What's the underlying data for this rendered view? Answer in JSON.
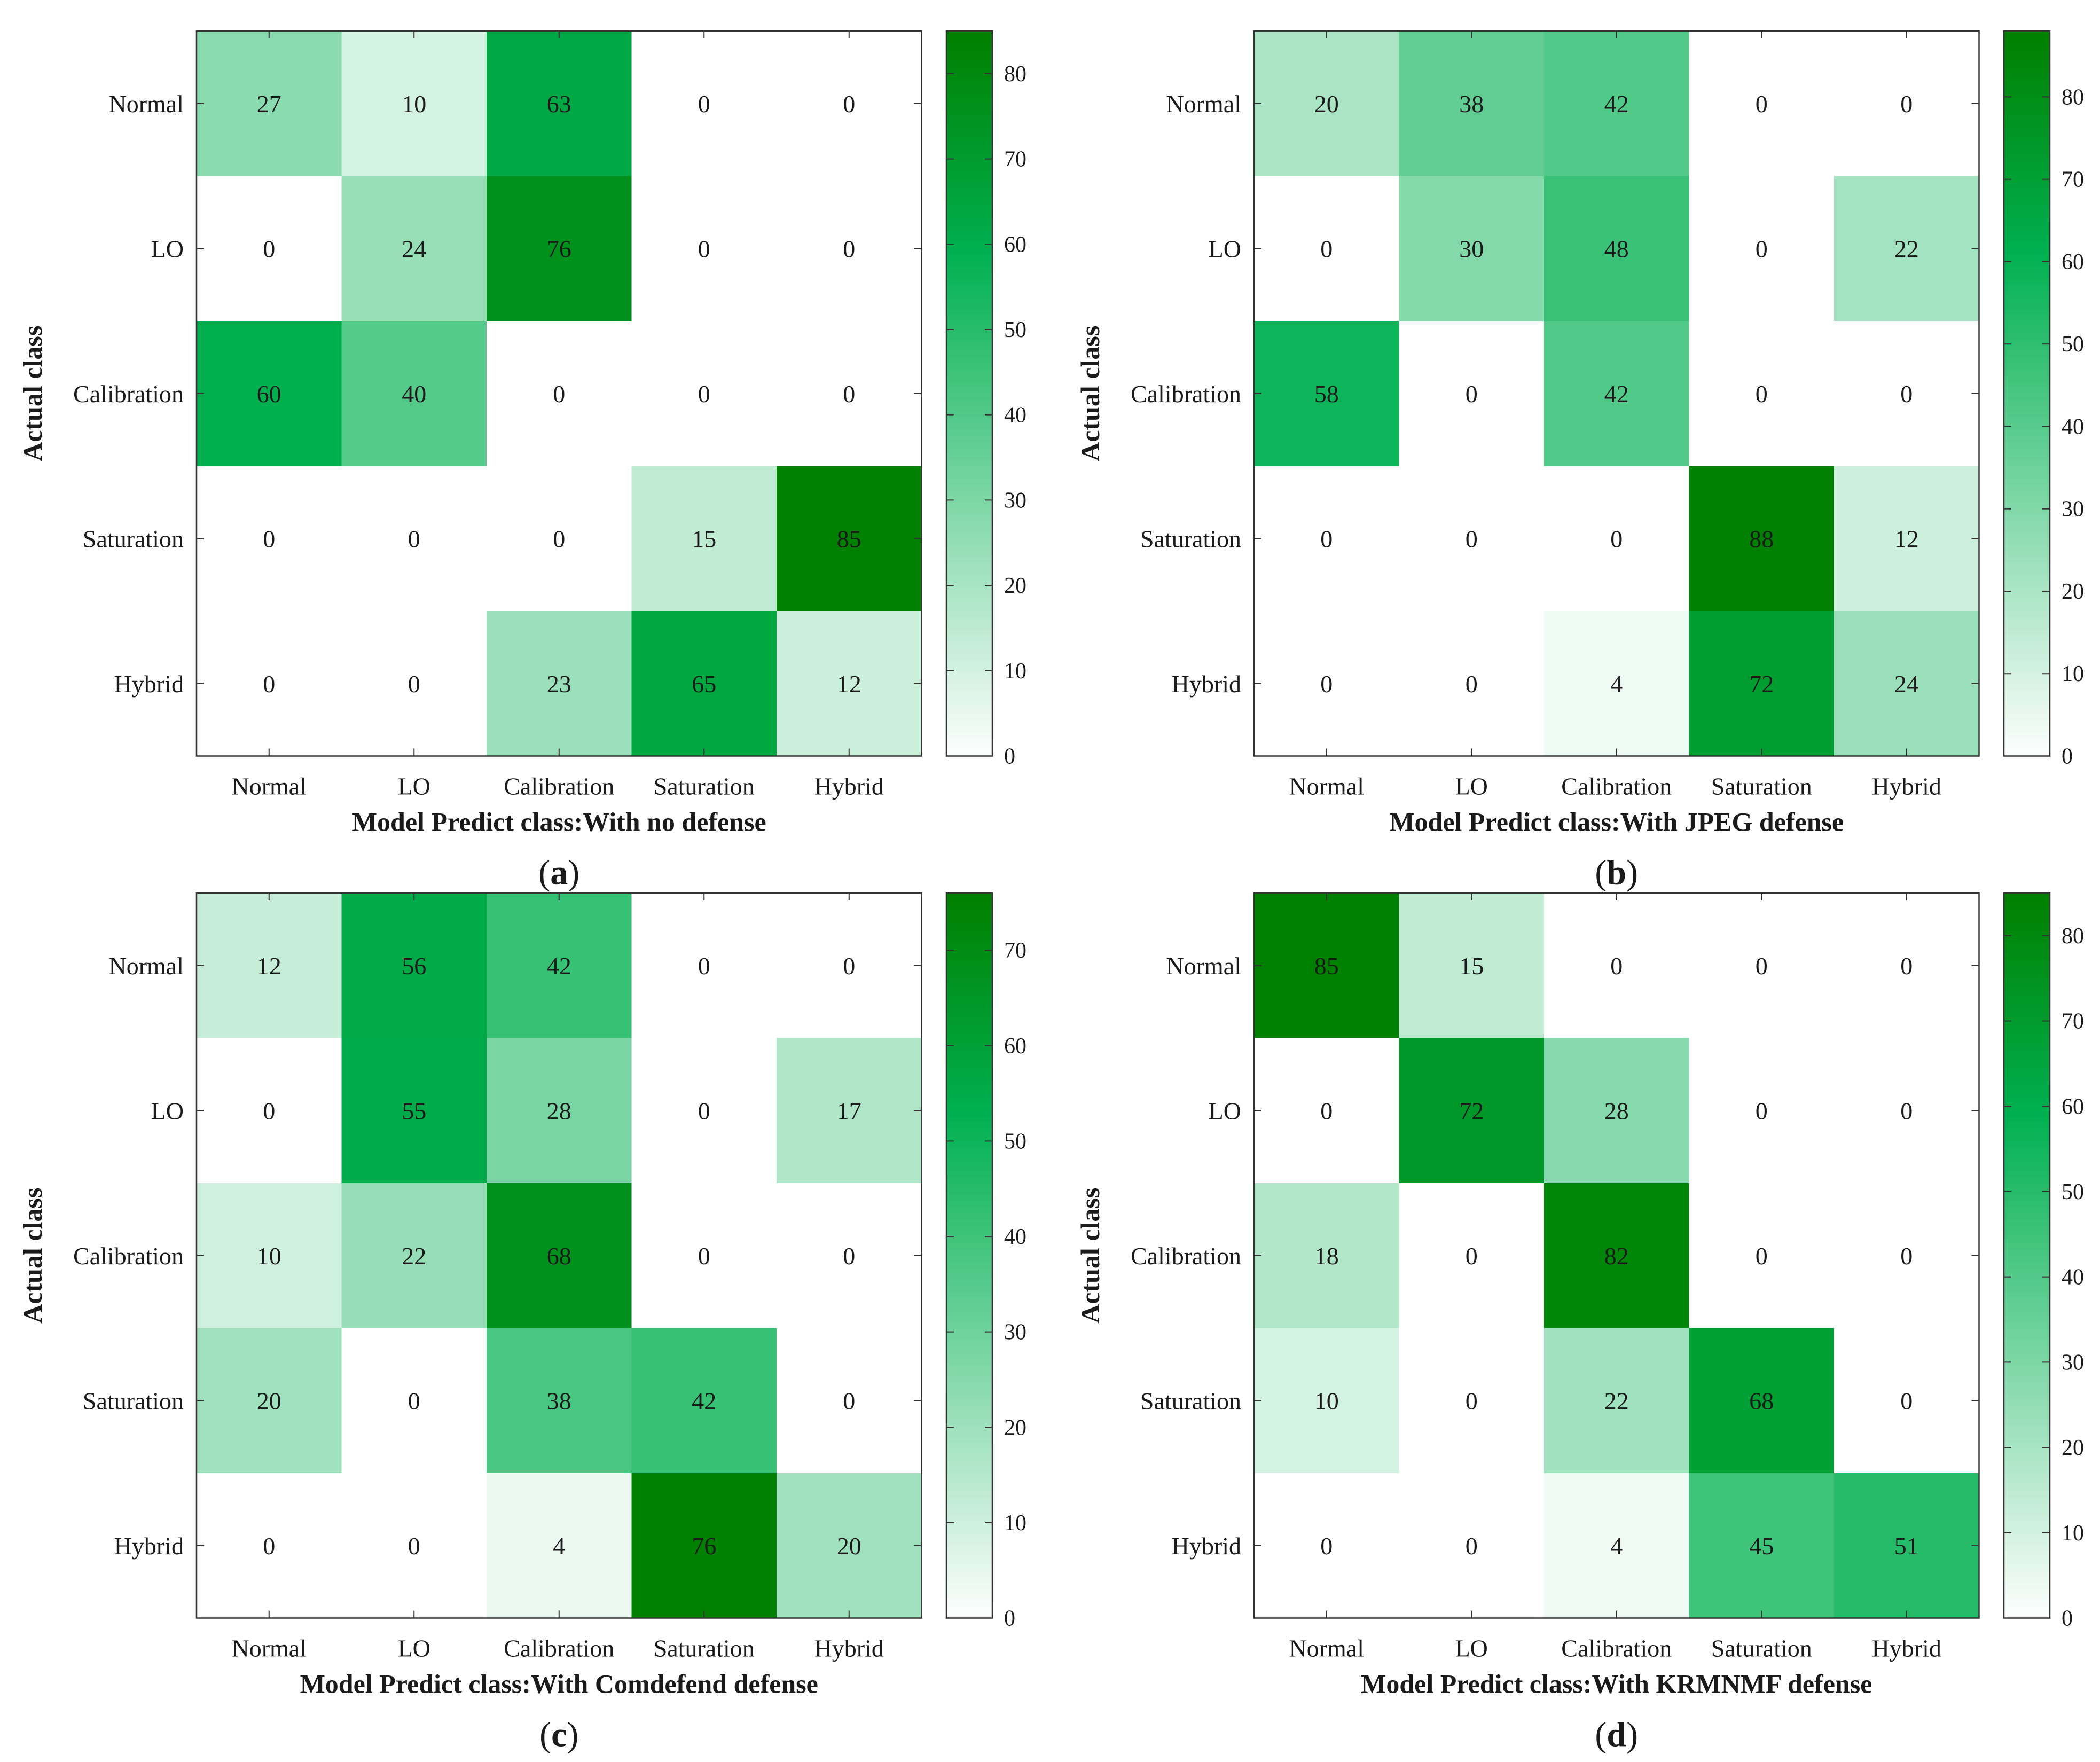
{
  "colors": {
    "low": "#ffffff",
    "mid": "#00b050",
    "high": "#008000",
    "axis": "#333333"
  },
  "chart_data": [
    {
      "type": "heatmap",
      "panel_label": "a",
      "categories_x": [
        "Normal",
        "LO",
        "Calibration",
        "Saturation",
        "Hybrid"
      ],
      "categories_y": [
        "Normal",
        "LO",
        "Calibration",
        "Saturation",
        "Hybrid"
      ],
      "xlabel": "Model Predict class:With no defense",
      "ylabel": "Actual class",
      "values": [
        [
          27,
          10,
          63,
          0,
          0
        ],
        [
          0,
          24,
          76,
          0,
          0
        ],
        [
          60,
          40,
          0,
          0,
          0
        ],
        [
          0,
          0,
          0,
          15,
          85
        ],
        [
          0,
          0,
          23,
          65,
          12
        ]
      ],
      "colorbar_range": [
        0,
        85
      ],
      "colorbar_ticks": [
        0,
        10,
        20,
        30,
        40,
        50,
        60,
        70,
        80
      ]
    },
    {
      "type": "heatmap",
      "panel_label": "b",
      "categories_x": [
        "Normal",
        "LO",
        "Calibration",
        "Saturation",
        "Hybrid"
      ],
      "categories_y": [
        "Normal",
        "LO",
        "Calibration",
        "Saturation",
        "Hybrid"
      ],
      "xlabel": "Model Predict class:With JPEG defense",
      "ylabel": "Actual class",
      "values": [
        [
          20,
          38,
          42,
          0,
          0
        ],
        [
          0,
          30,
          48,
          0,
          22
        ],
        [
          58,
          0,
          42,
          0,
          0
        ],
        [
          0,
          0,
          0,
          88,
          12
        ],
        [
          0,
          0,
          4,
          72,
          24
        ]
      ],
      "colorbar_range": [
        0,
        88
      ],
      "colorbar_ticks": [
        0,
        10,
        20,
        30,
        40,
        50,
        60,
        70,
        80
      ]
    },
    {
      "type": "heatmap",
      "panel_label": "c",
      "categories_x": [
        "Normal",
        "LO",
        "Calibration",
        "Saturation",
        "Hybrid"
      ],
      "categories_y": [
        "Normal",
        "LO",
        "Calibration",
        "Saturation",
        "Hybrid"
      ],
      "xlabel": "Model Predict class:With Comdefend defense",
      "ylabel": "Actual class",
      "values": [
        [
          12,
          56,
          42,
          0,
          0
        ],
        [
          0,
          55,
          28,
          0,
          17
        ],
        [
          10,
          22,
          68,
          0,
          0
        ],
        [
          20,
          0,
          38,
          42,
          0
        ],
        [
          0,
          0,
          4,
          76,
          20
        ]
      ],
      "colorbar_range": [
        0,
        76
      ],
      "colorbar_ticks": [
        0,
        10,
        20,
        30,
        40,
        50,
        60,
        70
      ]
    },
    {
      "type": "heatmap",
      "panel_label": "d",
      "categories_x": [
        "Normal",
        "LO",
        "Calibration",
        "Saturation",
        "Hybrid"
      ],
      "categories_y": [
        "Normal",
        "LO",
        "Calibration",
        "Saturation",
        "Hybrid"
      ],
      "xlabel": "Model Predict class:With KRMNMF defense",
      "ylabel": "Actual class",
      "values": [
        [
          85,
          15,
          0,
          0,
          0
        ],
        [
          0,
          72,
          28,
          0,
          0
        ],
        [
          18,
          0,
          82,
          0,
          0
        ],
        [
          10,
          0,
          22,
          68,
          0
        ],
        [
          0,
          0,
          4,
          45,
          51
        ]
      ],
      "colorbar_range": [
        0,
        85
      ],
      "colorbar_ticks": [
        0,
        10,
        20,
        30,
        40,
        50,
        60,
        70,
        80
      ]
    }
  ]
}
